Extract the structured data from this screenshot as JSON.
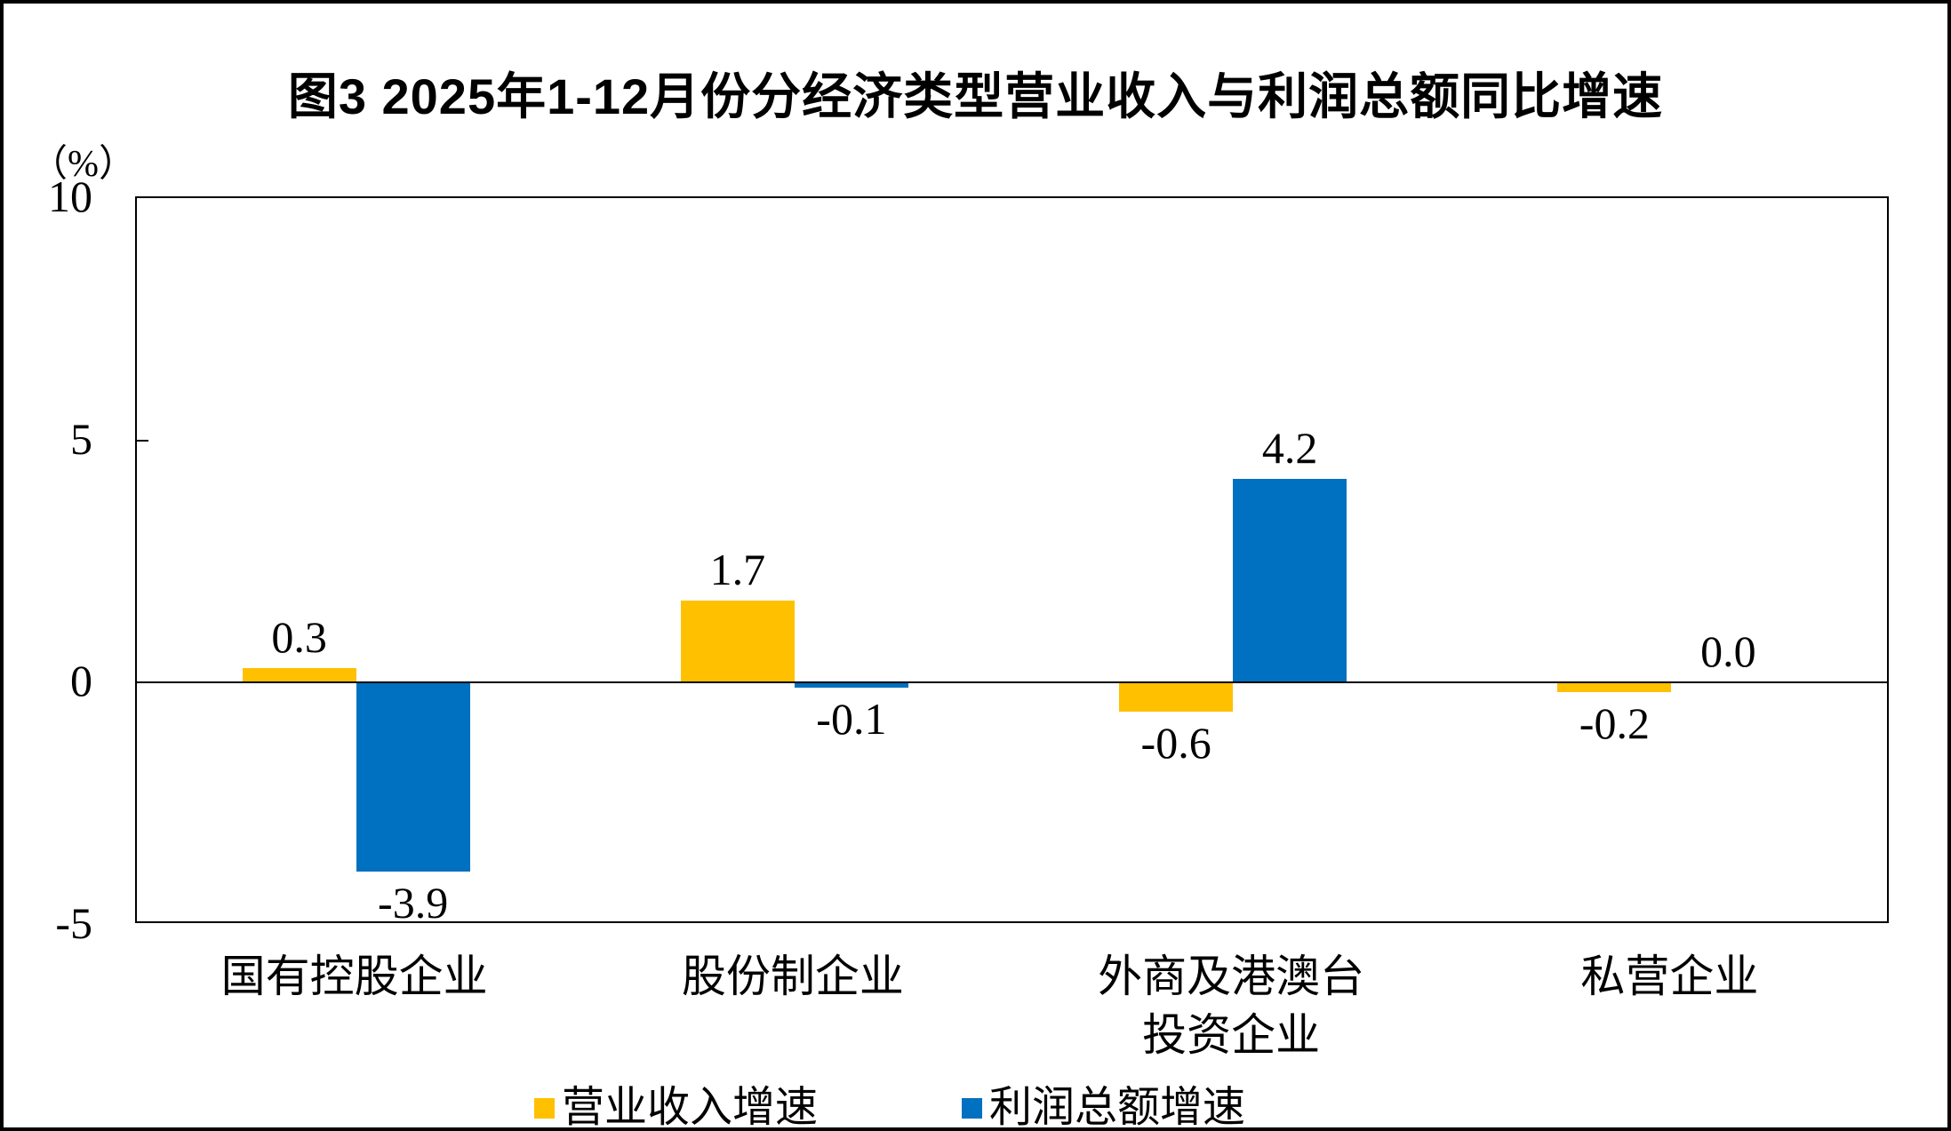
{
  "chart_data": {
    "type": "bar",
    "title": "图3 2025年1-12月份分经济类型营业收入与利润总额同比增速",
    "ylabel": "（%）",
    "xlabel": "",
    "categories": [
      "国有控股企业",
      "股份制企业",
      "外商及港澳台\n投资企业",
      "私营企业"
    ],
    "series": [
      {
        "name": "营业收入增速",
        "color": "#FFC000",
        "values": [
          0.3,
          1.7,
          -0.6,
          -0.2
        ]
      },
      {
        "name": "利润总额增速",
        "color": "#0070C0",
        "values": [
          -3.9,
          -0.1,
          4.2,
          0.0
        ]
      }
    ],
    "ylim": [
      -5,
      10
    ],
    "yticks": [
      10,
      5,
      0,
      -5
    ],
    "grid": false,
    "legend_position": "bottom",
    "data_labels": true,
    "value_label_decimals": 1,
    "axis_color": "#000000",
    "text_color": "#000000"
  }
}
